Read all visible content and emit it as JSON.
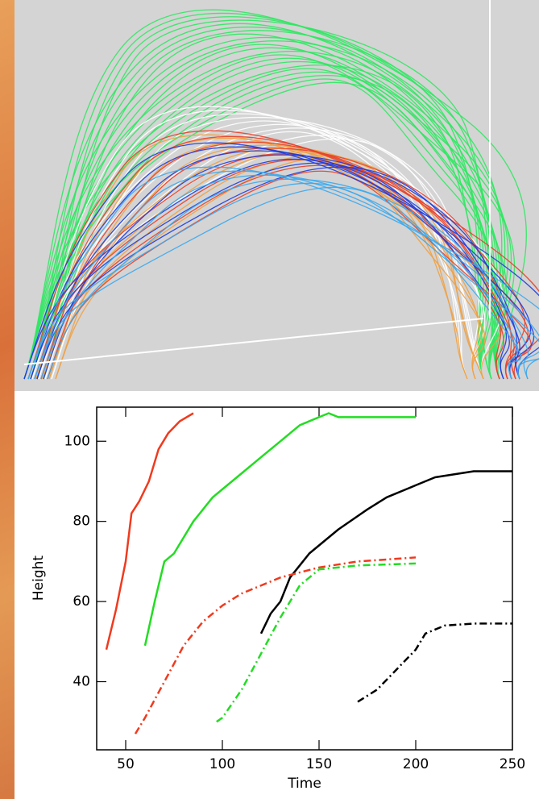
{
  "chart_data": {
    "type": "line",
    "x_label": "Time",
    "y_label": "Height",
    "xlim": [
      35,
      250
    ],
    "ylim": [
      23,
      108.5
    ],
    "xticks": [
      50,
      100,
      150,
      200,
      250
    ],
    "yticks": [
      40,
      60,
      80,
      100
    ],
    "series": [
      {
        "color": "#f03a1e",
        "dash": "solid",
        "x": [
          40,
          45,
          50,
          53,
          57,
          62,
          67,
          72,
          78,
          85
        ],
        "values": [
          48,
          58,
          70,
          82,
          85,
          90,
          98,
          102,
          105,
          107
        ]
      },
      {
        "color": "#22dd22",
        "dash": "solid",
        "x": [
          60,
          65,
          70,
          75,
          80,
          85,
          90,
          95,
          100,
          110,
          120,
          130,
          140,
          150,
          155,
          160,
          170,
          180,
          200
        ],
        "values": [
          49,
          60,
          70,
          72,
          76,
          80,
          83,
          86,
          88,
          92,
          96,
          100,
          104,
          106,
          107,
          106,
          106,
          106,
          106
        ]
      },
      {
        "color": "#000000",
        "dash": "solid",
        "x": [
          120,
          125,
          130,
          135,
          145,
          160,
          175,
          185,
          200,
          210,
          230,
          250
        ],
        "values": [
          52,
          57,
          60,
          66,
          72,
          78,
          83,
          86,
          89,
          91,
          92.5,
          92.5
        ]
      },
      {
        "color": "#f03a1e",
        "dash": "dashdot",
        "x": [
          55,
          60,
          70,
          80,
          90,
          100,
          110,
          130,
          150,
          170,
          200
        ],
        "values": [
          27,
          31,
          40,
          49,
          55,
          59,
          62,
          66,
          68.5,
          70,
          71
        ]
      },
      {
        "color": "#22dd22",
        "dash": "dashdot",
        "x": [
          97,
          100,
          110,
          120,
          130,
          140,
          150,
          170,
          200
        ],
        "values": [
          30,
          31,
          38,
          47,
          56,
          64,
          68,
          69,
          69.5
        ]
      },
      {
        "color": "#000000",
        "dash": "dashdot",
        "x": [
          170,
          180,
          190,
          200,
          205,
          215,
          230,
          250
        ],
        "values": [
          35,
          38,
          43,
          48,
          52,
          54,
          54.5,
          54.5
        ]
      }
    ]
  }
}
